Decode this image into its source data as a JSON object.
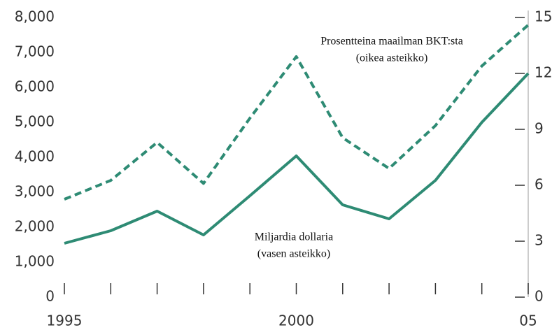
{
  "chart_data": {
    "type": "line",
    "categories": [
      "1995",
      null,
      null,
      null,
      null,
      "2000",
      null,
      null,
      null,
      null,
      "05"
    ],
    "series": [
      {
        "name": "Miljardia dollaria",
        "color": "#2e8b74",
        "axis": "y",
        "dash": false,
        "values": [
          1540,
          1900,
          2460,
          1780,
          2900,
          4040,
          2640,
          2240,
          3340,
          5000,
          6400
        ]
      },
      {
        "name": "Prosentteina maailman BKT:sta",
        "color": "#2e8b74",
        "axis": "y2",
        "dash": true,
        "values": [
          5.25,
          6.26,
          8.3,
          6.1,
          9.6,
          12.9,
          8.55,
          6.9,
          9.2,
          12.4,
          14.6
        ]
      }
    ],
    "annotations": [
      {
        "lines": [
          "Prosentteina maailman BKT:sta",
          "(oikea asteikko)"
        ],
        "series": 1
      },
      {
        "lines": [
          "Miljardia dollaria",
          "(vasen asteikko)"
        ],
        "series": 0
      }
    ],
    "ylim": [
      0,
      8000
    ],
    "yticks": [
      0,
      {
        "value": 1000,
        "label": "1,000"
      },
      {
        "value": 2000,
        "label": "2,000"
      },
      {
        "value": 3000,
        "label": "3,000"
      },
      {
        "value": 4000,
        "label": "4,000"
      },
      {
        "value": 5000,
        "label": "5,000"
      },
      {
        "value": 6000,
        "label": "6,000"
      },
      {
        "value": 7000,
        "label": "7,000"
      },
      {
        "value": 8000,
        "label": "8,000"
      }
    ],
    "y2lim": [
      0,
      15
    ],
    "y2ticks": [
      0,
      3,
      6,
      9,
      12,
      15
    ],
    "grid": false
  }
}
